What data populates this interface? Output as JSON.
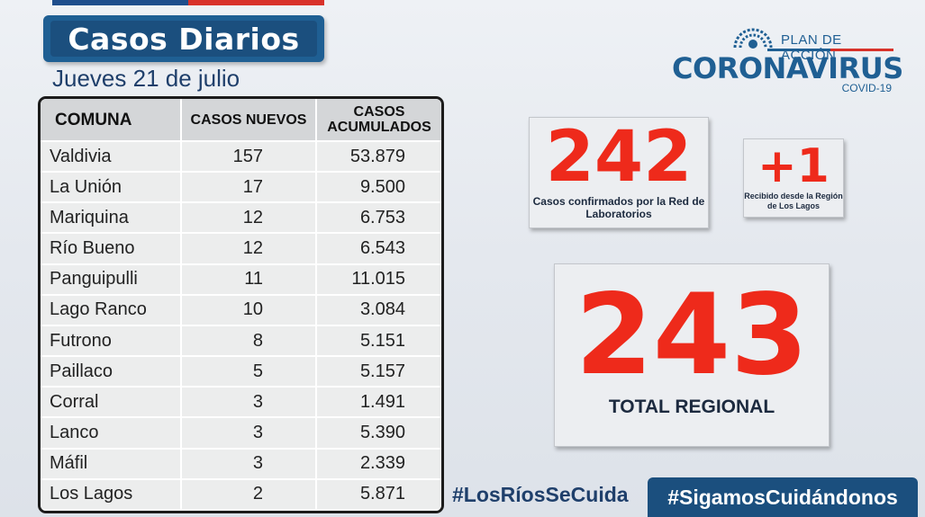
{
  "header": {
    "title": "Casos Diarios",
    "date": "Jueves 21 de julio"
  },
  "logo": {
    "plan": "PLAN DE ACCIÓN",
    "main": "CORONAVIRUS",
    "sub": "COVID-19"
  },
  "table": {
    "headers": [
      "COMUNA",
      "CASOS NUEVOS",
      "CASOS ACUMULADOS"
    ],
    "rows": [
      [
        "Valdivia",
        "157",
        "53.879"
      ],
      [
        "La Unión",
        "17",
        "9.500"
      ],
      [
        "Mariquina",
        "12",
        "6.753"
      ],
      [
        "Río Bueno",
        "12",
        "6.543"
      ],
      [
        "Panguipulli",
        "11",
        "11.015"
      ],
      [
        "Lago Ranco",
        "10",
        "3.084"
      ],
      [
        "Futrono",
        "8",
        "5.151"
      ],
      [
        "Paillaco",
        "5",
        "5.157"
      ],
      [
        "Corral",
        "3",
        "1.491"
      ],
      [
        "Lanco",
        "3",
        "5.390"
      ],
      [
        "Máfil",
        "3",
        "2.339"
      ],
      [
        "Los Lagos",
        "2",
        "5.871"
      ]
    ]
  },
  "stats": {
    "confirmed_value": "242",
    "confirmed_caption": "Casos confirmados por la Red de Laboratorios",
    "extra_value": "+1",
    "extra_caption": "Recibido desde la Región de Los Lagos",
    "total_value": "243",
    "total_caption": "TOTAL REGIONAL"
  },
  "footer": {
    "hashtag_1": "#LosRíosSeCuida",
    "hashtag_2": "#SigamosCuidándonos"
  },
  "colors": {
    "brand_blue": "#1f5f93",
    "dark_blue": "#1b4f7e",
    "accent_red": "#ee2a1b"
  },
  "icons": {
    "logo": "virus-emblem-icon"
  }
}
